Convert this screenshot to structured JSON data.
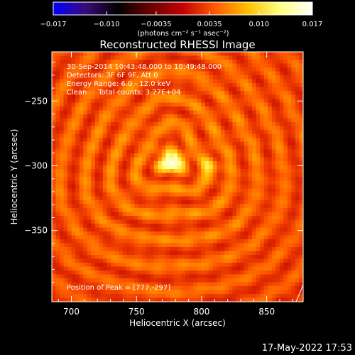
{
  "chart_data": {
    "type": "heatmap",
    "title": "Reconstructed RHESSI Image",
    "xlabel": "Heliocentric X (arcsec)",
    "ylabel": "Heliocentric Y (arcsec)",
    "xlim": [
      685,
      878
    ],
    "ylim": [
      -405,
      -212
    ],
    "x_ticks": [
      700,
      750,
      800,
      850
    ],
    "y_ticks": [
      -250,
      -300,
      -350
    ],
    "x_tick_labels": [
      "700",
      "750",
      "800",
      "850"
    ],
    "y_tick_labels": [
      "−250",
      "−300",
      "−350"
    ],
    "colorbar": {
      "min": -0.017,
      "max": 0.017,
      "tick_values": [
        -0.017,
        -0.01,
        -0.0035,
        0.0035,
        0.01,
        0.017
      ],
      "tick_labels": [
        "−0.017",
        "−0.010",
        "−0.0035",
        "0.0035",
        "0.010",
        "0.017"
      ],
      "units_label": "(photons cm⁻² s⁻¹ asec⁻²)",
      "colors": [
        "#0000ff",
        "#3a0b7a",
        "#000000",
        "#6a0000",
        "#c40000",
        "#ff5a00",
        "#ffc000",
        "#ffff80",
        "#ffffff"
      ]
    },
    "annotations": [
      "30-Sep-2014 10:43:48.000 to 10:49:48.000",
      "Detectors: 3F 6F 9F, Att 0",
      "Energy Range: 6.0 - 12.0 keV",
      "Clean     Total counts: 3.27E+04"
    ],
    "peak_label": "Position of Peak = [777,-297]",
    "sources": [
      {
        "x": 777,
        "y": -297,
        "value": 0.017,
        "sx": 6,
        "sy": 5
      },
      {
        "x": 806,
        "y": -301,
        "value": 0.0095,
        "sx": 5,
        "sy": 5
      },
      {
        "x": 757,
        "y": -254,
        "value": 0.004,
        "sx": 4,
        "sy": 4
      }
    ],
    "background_level": 0.0045
  },
  "footer": {
    "date": "17-May-2022 17:53"
  }
}
